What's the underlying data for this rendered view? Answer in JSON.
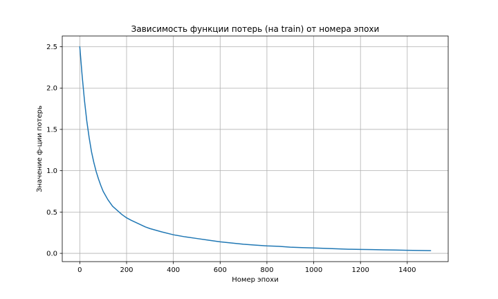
{
  "chart_data": {
    "type": "line",
    "title": "Зависимость функции потерь (на train) от номера эпохи",
    "xlabel": "Номер эпохи",
    "ylabel": "Значение ф-ции потерь",
    "xlim": [
      -75,
      1575
    ],
    "ylim": [
      -0.1,
      2.63
    ],
    "grid": true,
    "xticks": [
      0,
      200,
      400,
      600,
      800,
      1000,
      1200,
      1400
    ],
    "xtick_labels": [
      "0",
      "200",
      "400",
      "600",
      "800",
      "1000",
      "1200",
      "1400"
    ],
    "yticks": [
      0.0,
      0.5,
      1.0,
      1.5,
      2.0,
      2.5
    ],
    "ytick_labels": [
      "0.0",
      "0.5",
      "1.0",
      "1.5",
      "2.0",
      "2.5"
    ],
    "series": [
      {
        "color": "#1f77b4",
        "x": [
          0,
          10,
          20,
          30,
          40,
          50,
          60,
          70,
          80,
          90,
          100,
          120,
          140,
          160,
          180,
          200,
          220,
          250,
          280,
          300,
          350,
          400,
          450,
          500,
          550,
          600,
          650,
          700,
          750,
          800,
          850,
          900,
          950,
          1000,
          1050,
          1100,
          1150,
          1200,
          1250,
          1300,
          1350,
          1400,
          1450,
          1500
        ],
        "y": [
          2.5,
          2.15,
          1.85,
          1.6,
          1.4,
          1.23,
          1.1,
          0.99,
          0.9,
          0.82,
          0.75,
          0.65,
          0.57,
          0.52,
          0.47,
          0.43,
          0.4,
          0.36,
          0.32,
          0.3,
          0.26,
          0.225,
          0.2,
          0.18,
          0.16,
          0.14,
          0.125,
          0.11,
          0.1,
          0.09,
          0.085,
          0.075,
          0.07,
          0.065,
          0.06,
          0.055,
          0.05,
          0.048,
          0.045,
          0.042,
          0.04,
          0.037,
          0.035,
          0.033
        ]
      }
    ]
  }
}
